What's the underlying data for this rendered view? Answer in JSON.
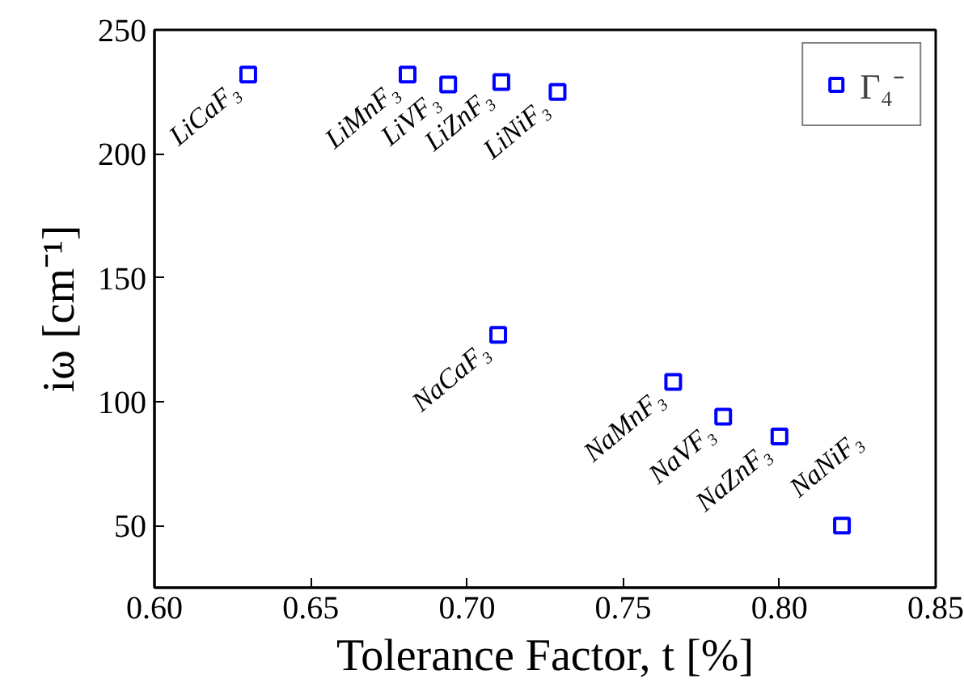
{
  "chart_data": {
    "type": "scatter",
    "xlabel": "Tolerance Factor, t [%]",
    "ylabel": "iω [cm⁻¹]",
    "x": [
      0.63,
      0.681,
      0.694,
      0.711,
      0.729,
      0.71,
      0.766,
      0.782,
      0.8,
      0.82
    ],
    "series": [
      {
        "name": "Γ₄⁻",
        "color": "#0000ff",
        "values": [
          232,
          232,
          228,
          229,
          225,
          127,
          108,
          94,
          86,
          50
        ]
      }
    ],
    "annotations": [
      {
        "text": "LiCaF₃",
        "x": 0.63,
        "y": 232
      },
      {
        "text": "LiMnF₃",
        "x": 0.681,
        "y": 232
      },
      {
        "text": "LiVF₃",
        "x": 0.694,
        "y": 228
      },
      {
        "text": "LiZnF₃",
        "x": 0.711,
        "y": 229
      },
      {
        "text": "LiNiF₃",
        "x": 0.729,
        "y": 225
      },
      {
        "text": "NaCaF₃",
        "x": 0.71,
        "y": 127
      },
      {
        "text": "NaMnF₃",
        "x": 0.766,
        "y": 108
      },
      {
        "text": "NaVF₃",
        "x": 0.782,
        "y": 94
      },
      {
        "text": "NaZnF₃",
        "x": 0.8,
        "y": 86
      },
      {
        "text": "NaNiF₃",
        "x": 0.82,
        "y": 50
      }
    ],
    "xlim": [
      0.6,
      0.85
    ],
    "ylim": [
      25,
      250
    ],
    "xticks": [
      {
        "value": 0.6,
        "label": "0.60"
      },
      {
        "value": 0.65,
        "label": "0.65"
      },
      {
        "value": 0.7,
        "label": "0.70"
      },
      {
        "value": 0.75,
        "label": "0.75"
      },
      {
        "value": 0.8,
        "label": "0.80"
      },
      {
        "value": 0.85,
        "label": "0.85"
      }
    ],
    "yticks": [
      50,
      100,
      150,
      200,
      250
    ],
    "marker": "square",
    "legend": "top right",
    "grid": false
  }
}
